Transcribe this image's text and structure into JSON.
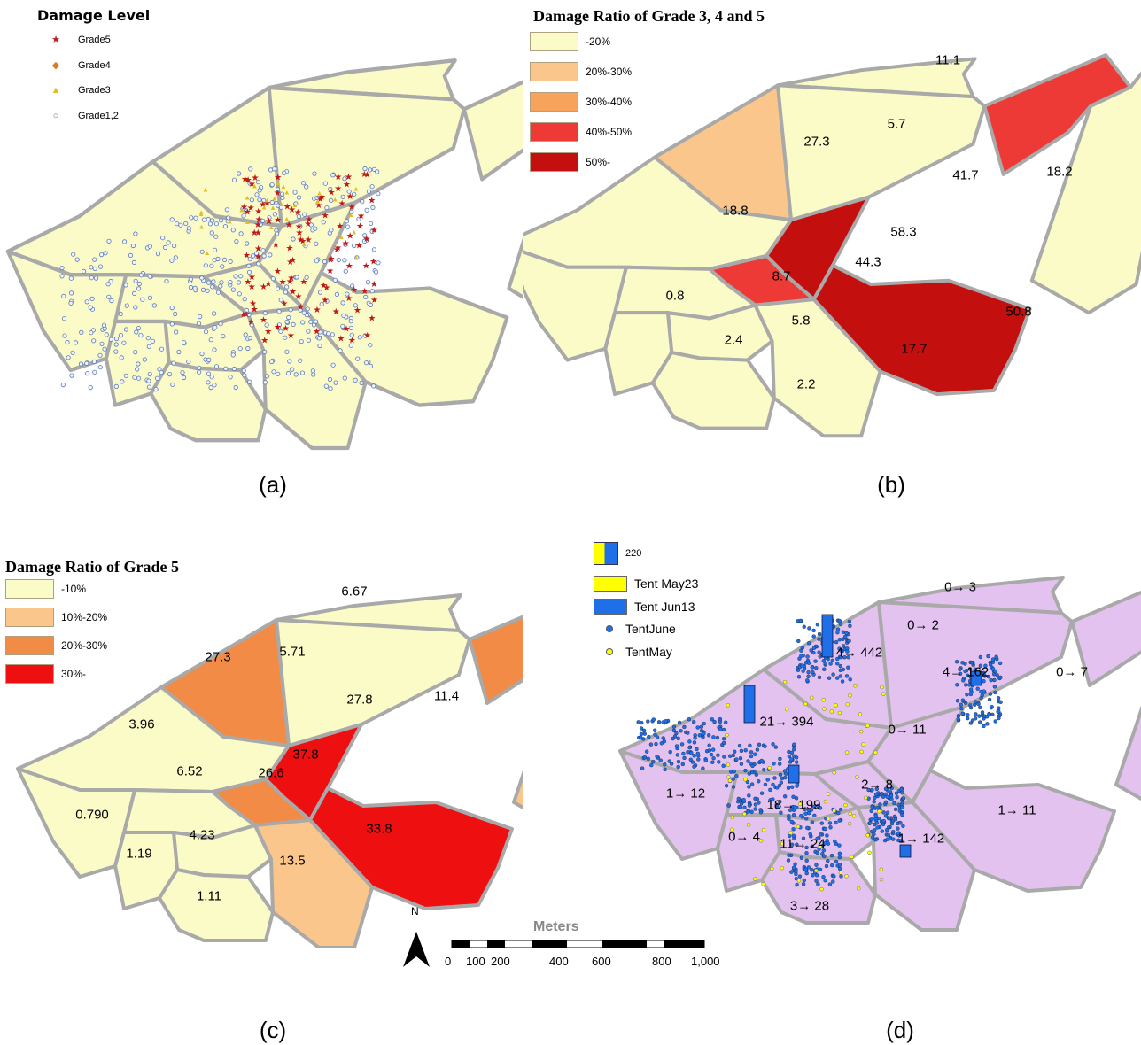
{
  "colors": {
    "base": "#fbfbc8",
    "purple": "#e3c2f0",
    "road": "#a9a9a9",
    "c2030": "#fbc68c",
    "c3040": "#f7a35c",
    "c4050": "#ee3a36",
    "c50": "#c40f0f",
    "g2030": "#f18b45",
    "g30": "#ee1010",
    "blue": "#1f6fe8",
    "yellow": "#ffff00"
  },
  "panel_a": {
    "legend_title": "Damage Level",
    "legend": [
      {
        "symbol": "★",
        "label": "Grade5",
        "color": "#c01a1a"
      },
      {
        "symbol": "◆",
        "label": "Grade4",
        "color": "#e07a20"
      },
      {
        "symbol": "▲",
        "label": "Grade3",
        "color": "#e0c020"
      },
      {
        "symbol": "○",
        "label": "Grade1,2",
        "color": "#5a7ab0"
      }
    ],
    "caption": "(a)"
  },
  "panel_b": {
    "legend_title": "Damage Ratio of Grade 3, 4 and 5",
    "legend": [
      "-20%",
      "20%-30%",
      "30%-40%",
      "40%-50%",
      "50%-"
    ],
    "values": [
      "11.1",
      "27.3",
      "5.7",
      "41.7",
      "18.2",
      "18.8",
      "58.3",
      "44.3",
      "8.7",
      "0.8",
      "5.8",
      "50.8",
      "2.4",
      "17.7",
      "2.2"
    ],
    "caption": "(b)"
  },
  "panel_c": {
    "legend_title": "Damage Ratio of Grade 5",
    "legend": [
      "-10%",
      "10%-20%",
      "20%-30%",
      "30%-"
    ],
    "values": [
      "6.67",
      "27.3",
      "5.71",
      "27.8",
      "11.4",
      "3.96",
      "37.8",
      "26.6",
      "6.52",
      "0.790",
      "4.23",
      "33.8",
      "1.19",
      "13.5",
      "1.11"
    ],
    "caption": "(c)"
  },
  "panel_d": {
    "legend": {
      "bar_value": "220",
      "tent_may23": "Tent May23",
      "tent_jun13": "Tent Jun13",
      "tent_june": "TentJune",
      "tent_may": "TentMay"
    },
    "values": [
      "0→ 3",
      "0→ 2",
      "4→ 442",
      "4→ 162",
      "0→ 7",
      "21→ 394",
      "0→ 11",
      "1→ 12",
      "2→ 8",
      "18→ 199",
      "1→ 11",
      "0→ 4",
      "11→ 24",
      "1→ 142",
      "3→ 28"
    ],
    "caption": "(d)"
  },
  "scale": {
    "north": "N",
    "unit": "Meters",
    "ticks": [
      "0",
      "100",
      "200",
      "400",
      "600",
      "800",
      "1,000"
    ]
  }
}
